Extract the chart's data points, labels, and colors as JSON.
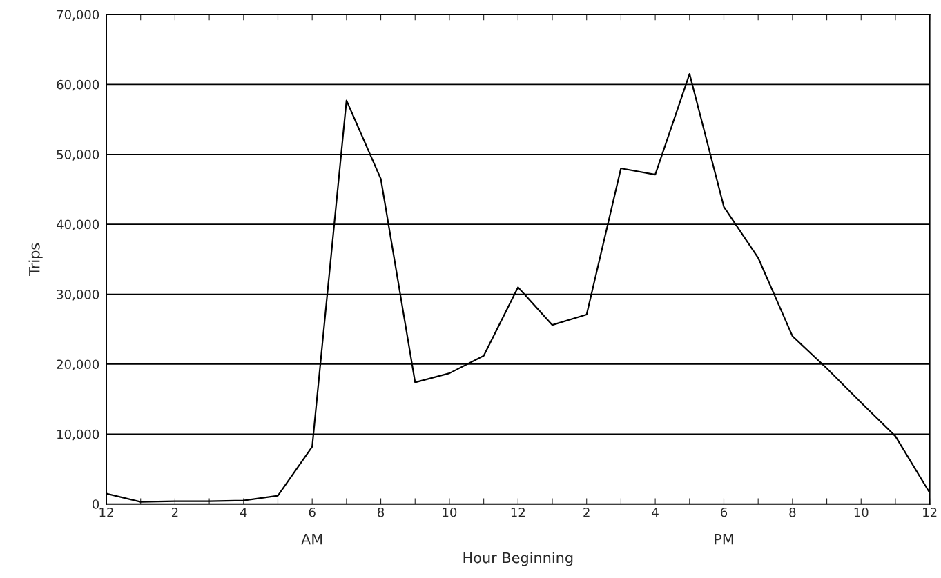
{
  "chart_data": {
    "type": "line",
    "xlabel": "Hour Beginning",
    "ylabel": "Trips",
    "annotations": [
      "AM",
      "PM"
    ],
    "categories": [
      "12",
      null,
      "2",
      null,
      "4",
      null,
      "6",
      null,
      "8",
      null,
      "10",
      null,
      "12",
      null,
      "2",
      null,
      "4",
      null,
      "6",
      null,
      "8",
      null,
      "10",
      null,
      "12"
    ],
    "series": [
      {
        "color": "#000000",
        "values": [
          1500,
          300,
          400,
          400,
          500,
          1200,
          8200,
          57700,
          46500,
          17400,
          18700,
          21200,
          31000,
          25600,
          27100,
          48000,
          47100,
          61500,
          42500,
          35200,
          24000,
          19400,
          14500,
          9700,
          1600
        ]
      }
    ],
    "ylim": [
      0,
      70000
    ],
    "yticks": [
      0,
      {
        "value": 10000,
        "label": "10,000"
      },
      {
        "value": 20000,
        "label": "20,000"
      },
      {
        "value": 30000,
        "label": "30,000"
      },
      {
        "value": 40000,
        "label": "40,000"
      },
      {
        "value": 50000,
        "label": "50,000"
      },
      {
        "value": 60000,
        "label": "60,000"
      },
      {
        "value": 70000,
        "label": "70,000"
      }
    ],
    "grid": "y",
    "marker": "none",
    "line_style": "solid"
  }
}
